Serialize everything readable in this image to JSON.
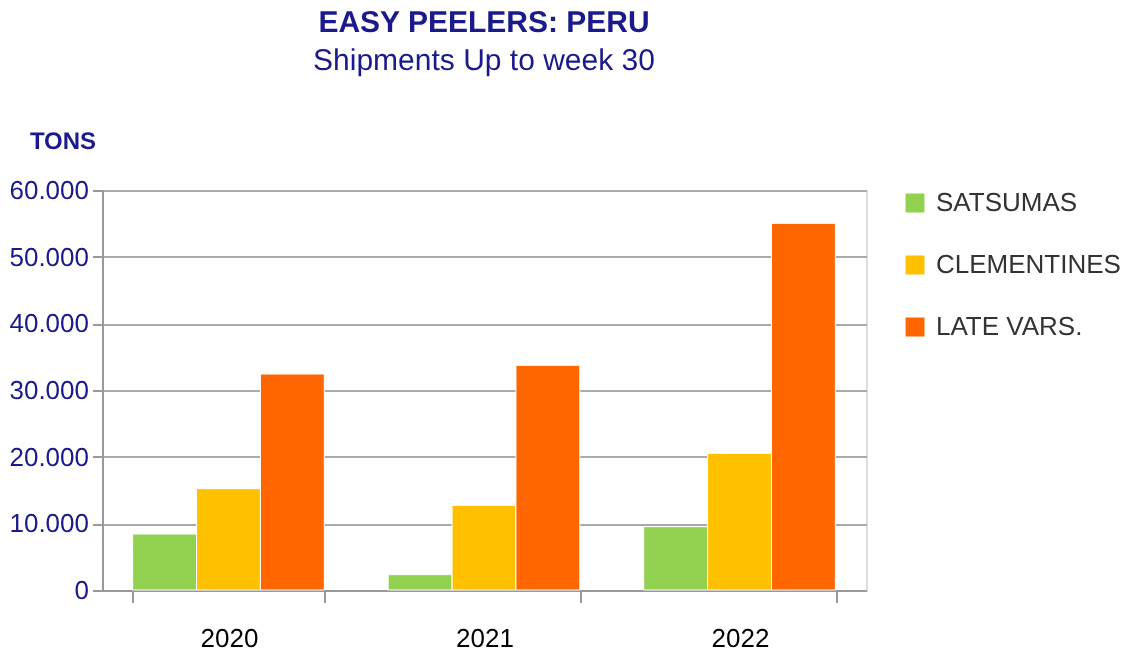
{
  "chart_data": {
    "type": "bar",
    "title": "EASY PEELERS: PERU",
    "subtitle": "Shipments Up to week 30",
    "ylabel": "TONS",
    "categories": [
      "2020",
      "2021",
      "2022"
    ],
    "series": [
      {
        "name": "SATSUMAS",
        "color": "#92d050",
        "values": [
          8400,
          2300,
          9500
        ]
      },
      {
        "name": "CLEMENTINES",
        "color": "#ffc000",
        "values": [
          15200,
          12700,
          20500
        ]
      },
      {
        "name": "LATE VARS.",
        "color": "#ff6600",
        "values": [
          32400,
          33700,
          55000
        ]
      }
    ],
    "ylim": [
      0,
      60000
    ],
    "yticks": [
      0,
      {
        "value": 10000,
        "label": "10.000"
      },
      {
        "value": 20000,
        "label": "20.000"
      },
      {
        "value": 30000,
        "label": "30.000"
      },
      {
        "value": 40000,
        "label": "40.000"
      },
      {
        "value": 50000,
        "label": "50.000"
      },
      {
        "value": 60000,
        "label": "60.000"
      }
    ],
    "grid": "y",
    "legend": "right"
  }
}
